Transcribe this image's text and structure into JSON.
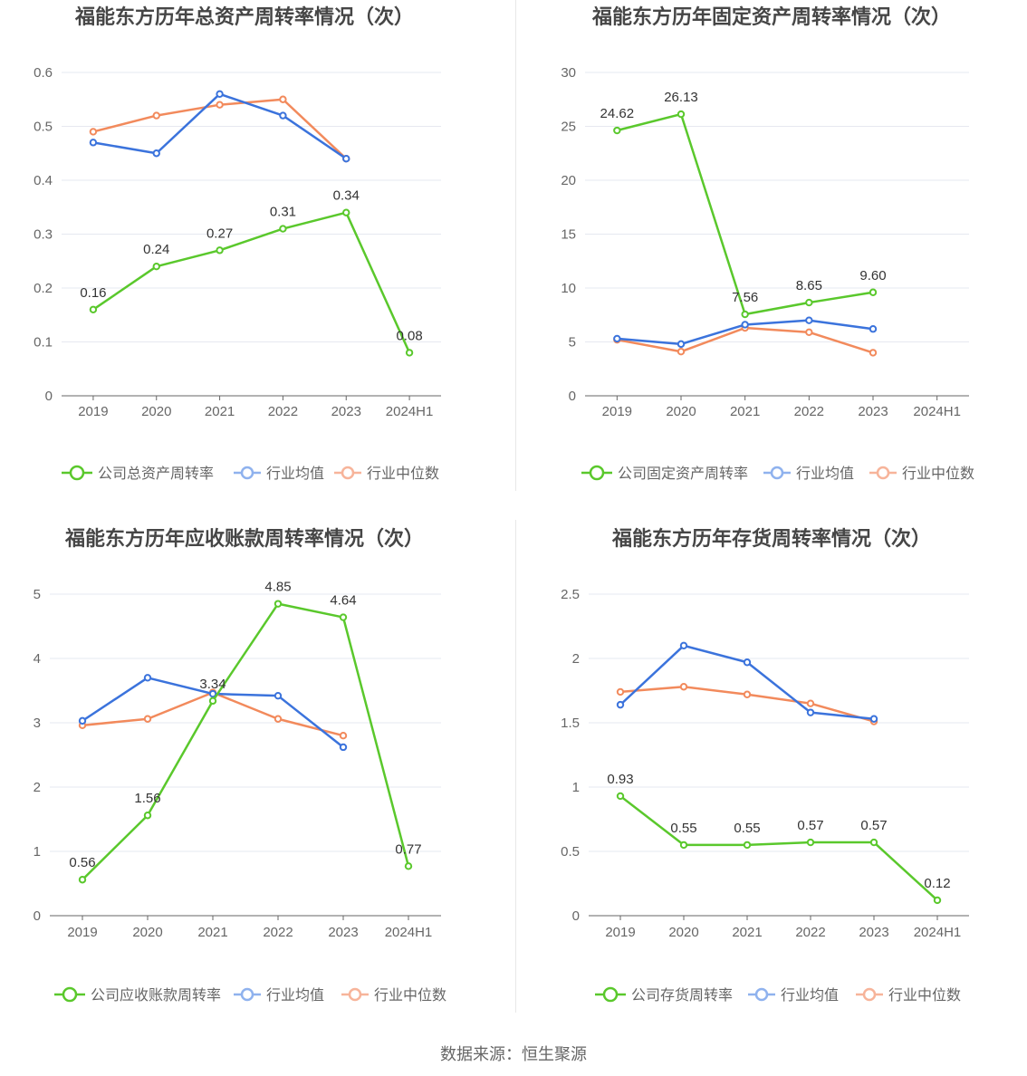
{
  "footer": {
    "source": "数据来源：恒生聚源"
  },
  "colors": {
    "company": "#5ac82c",
    "average": "#3b73dc",
    "median": "#f28a5c",
    "legend_average": "#8fb2ee",
    "legend_median": "#f7b49a",
    "axis": "#666666",
    "grid": "#e6e8f0",
    "label": "#333333"
  },
  "chart_data": [
    {
      "type": "line",
      "title": "福能东方历年总资产周转率情况（次）",
      "categories": [
        "2019",
        "2020",
        "2021",
        "2022",
        "2023",
        "2024H1"
      ],
      "ylim": [
        0,
        0.6
      ],
      "yticks": [
        "0",
        "0.1",
        "0.2",
        "0.3",
        "0.4",
        "0.5",
        "0.6"
      ],
      "series": [
        {
          "name": "公司总资产周转率",
          "role": "company",
          "values": [
            0.16,
            0.24,
            0.27,
            0.31,
            0.34,
            0.08
          ],
          "labels": [
            "0.16",
            "0.24",
            "0.27",
            "0.31",
            "0.34",
            "0.08"
          ]
        },
        {
          "name": "行业均值",
          "role": "average",
          "values": [
            0.47,
            0.45,
            0.56,
            0.52,
            0.44,
            null
          ]
        },
        {
          "name": "行业中位数",
          "role": "median",
          "values": [
            0.49,
            0.52,
            0.54,
            0.55,
            0.44,
            null
          ]
        }
      ],
      "legend": "bottom",
      "grid": true
    },
    {
      "type": "line",
      "title": "福能东方历年固定资产周转率情况（次）",
      "categories": [
        "2019",
        "2020",
        "2021",
        "2022",
        "2023",
        "2024H1"
      ],
      "ylim": [
        0,
        30
      ],
      "yticks": [
        "0",
        "5",
        "10",
        "15",
        "20",
        "25",
        "30"
      ],
      "series": [
        {
          "name": "公司固定资产周转率",
          "role": "company",
          "values": [
            24.62,
            26.13,
            7.56,
            8.65,
            9.6,
            null
          ],
          "labels": [
            "24.62",
            "26.13",
            "7.56",
            "8.65",
            "9.60",
            null
          ]
        },
        {
          "name": "行业均值",
          "role": "average",
          "values": [
            5.3,
            4.8,
            6.6,
            7.0,
            6.2,
            null
          ]
        },
        {
          "name": "行业中位数",
          "role": "median",
          "values": [
            5.2,
            4.1,
            6.3,
            5.9,
            4.0,
            null
          ]
        }
      ],
      "legend": "bottom",
      "grid": true
    },
    {
      "type": "line",
      "title": "福能东方历年应收账款周转率情况（次）",
      "categories": [
        "2019",
        "2020",
        "2021",
        "2022",
        "2023",
        "2024H1"
      ],
      "ylim": [
        0,
        5
      ],
      "yticks": [
        "0",
        "1",
        "2",
        "3",
        "4",
        "5"
      ],
      "series": [
        {
          "name": "公司应收账款周转率",
          "role": "company",
          "values": [
            0.56,
            1.56,
            3.34,
            4.85,
            4.64,
            0.77
          ],
          "labels": [
            "0.56",
            "1.56",
            "3.34",
            "4.85",
            "4.64",
            "0.77"
          ]
        },
        {
          "name": "行业均值",
          "role": "average",
          "values": [
            3.03,
            3.7,
            3.45,
            3.42,
            2.62,
            null
          ]
        },
        {
          "name": "行业中位数",
          "role": "median",
          "values": [
            2.96,
            3.06,
            3.47,
            3.06,
            2.8,
            null
          ]
        }
      ],
      "legend": "bottom",
      "grid": true
    },
    {
      "type": "line",
      "title": "福能东方历年存货周转率情况（次）",
      "categories": [
        "2019",
        "2020",
        "2021",
        "2022",
        "2023",
        "2024H1"
      ],
      "ylim": [
        0,
        2.5
      ],
      "yticks": [
        "0",
        "0.5",
        "1",
        "1.5",
        "2",
        "2.5"
      ],
      "series": [
        {
          "name": "公司存货周转率",
          "role": "company",
          "values": [
            0.93,
            0.55,
            0.55,
            0.57,
            0.57,
            0.12
          ],
          "labels": [
            "0.93",
            "0.55",
            "0.55",
            "0.57",
            "0.57",
            "0.12"
          ]
        },
        {
          "name": "行业均值",
          "role": "average",
          "values": [
            1.64,
            2.1,
            1.97,
            1.58,
            1.53,
            null
          ]
        },
        {
          "name": "行业中位数",
          "role": "median",
          "values": [
            1.74,
            1.78,
            1.72,
            1.65,
            1.51,
            null
          ]
        }
      ],
      "legend": "bottom",
      "grid": true
    }
  ]
}
